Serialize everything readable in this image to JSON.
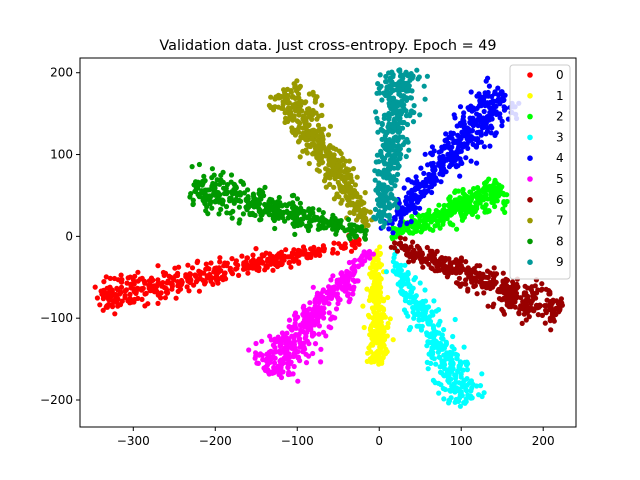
{
  "chart_data": {
    "type": "scatter",
    "title": "Validation data. Just cross-entropy. Epoch = 49",
    "xlabel": "",
    "ylabel": "",
    "xlim": [
      -365,
      240
    ],
    "ylim": [
      -233,
      218
    ],
    "xticks": [
      -300,
      -200,
      -100,
      0,
      100,
      200
    ],
    "yticks": [
      -200,
      -100,
      0,
      100,
      200
    ],
    "xtick_labels": [
      "−300",
      "−200",
      "−100",
      "0",
      "100",
      "200"
    ],
    "ytick_labels": [
      "−200",
      "−100",
      "0",
      "100",
      "200"
    ],
    "legend_position": "top-right",
    "series": [
      {
        "name": "0",
        "color": "#ff0000",
        "clusters": [
          {
            "start": [
              -15,
              -5
            ],
            "end": [
              -340,
              -75
            ],
            "width": 7,
            "count": 420
          }
        ]
      },
      {
        "name": "1",
        "color": "#ffff00",
        "clusters": [
          {
            "start": [
              -3,
              -18
            ],
            "end": [
              -2,
              -153
            ],
            "width": 5,
            "count": 260
          }
        ]
      },
      {
        "name": "2",
        "color": "#00ff00",
        "clusters": [
          {
            "start": [
              15,
              3
            ],
            "end": [
              150,
              57
            ],
            "width": 8,
            "count": 330
          }
        ]
      },
      {
        "name": "3",
        "color": "#00ffff",
        "clusters": [
          {
            "start": [
              12,
              -18
            ],
            "end": [
              108,
              -203
            ],
            "width": 9,
            "count": 330
          }
        ]
      },
      {
        "name": "4",
        "color": "#0000ff",
        "clusters": [
          {
            "start": [
              10,
              8
            ],
            "end": [
              150,
              175
            ],
            "width": 10,
            "count": 420
          }
        ]
      },
      {
        "name": "5",
        "color": "#ff00ff",
        "clusters": [
          {
            "start": [
              -10,
              -15
            ],
            "end": [
              -135,
              -165
            ],
            "width": 10,
            "count": 420
          }
        ]
      },
      {
        "name": "6",
        "color": "#990000",
        "clusters": [
          {
            "start": [
              15,
              -8
            ],
            "end": [
              220,
              -95
            ],
            "width": 9,
            "count": 400
          }
        ]
      },
      {
        "name": "7",
        "color": "#999900",
        "clusters": [
          {
            "start": [
              -10,
              10
            ],
            "end": [
              -115,
              180
            ],
            "width": 10,
            "count": 420
          }
        ]
      },
      {
        "name": "8",
        "color": "#009900",
        "clusters": [
          {
            "start": [
              -12,
              2
            ],
            "end": [
              -230,
              62
            ],
            "width": 9,
            "count": 400
          }
        ]
      },
      {
        "name": "9",
        "color": "#009999",
        "clusters": [
          {
            "start": [
              2,
              12
            ],
            "end": [
              25,
              202
            ],
            "width": 9,
            "count": 400
          }
        ]
      }
    ]
  }
}
